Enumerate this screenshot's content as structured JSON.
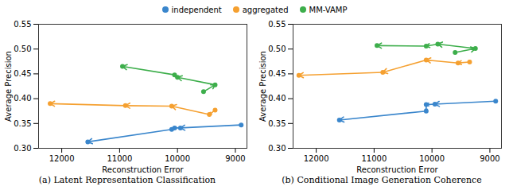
{
  "chart_data": [
    {
      "type": "line",
      "title": "(a) Latent Representation Classification",
      "x_label": "Reconstruction Error",
      "y_label": "Average Precision",
      "xlim": [
        12400,
        8800
      ],
      "ylim": [
        0.3,
        0.55
      ],
      "xticks": [
        12000,
        11000,
        10000,
        9000
      ],
      "yticks": [
        {
          "value": 0.3,
          "label": "0.30"
        },
        {
          "value": 0.35,
          "label": "0.35"
        },
        {
          "value": 0.4,
          "label": "0.40"
        },
        {
          "value": 0.45,
          "label": "0.45"
        },
        {
          "value": 0.5,
          "label": "0.50"
        },
        {
          "value": 0.55,
          "label": "0.55"
        }
      ],
      "legend": "top",
      "marker": "circle",
      "grid": false,
      "series": [
        {
          "name": "independent",
          "color": "#3a86cc",
          "x": [
            8900,
            9950,
            10050,
            10100,
            11550
          ],
          "values": [
            0.347,
            0.341,
            0.341,
            0.338,
            0.313
          ]
        },
        {
          "name": "aggregated",
          "color": "#f5a030",
          "x": [
            9350,
            9450,
            10100,
            10900,
            12200
          ],
          "values": [
            0.377,
            0.368,
            0.385,
            0.386,
            0.39
          ]
        },
        {
          "name": "MM-VAMP",
          "color": "#3dae4b",
          "x": [
            9550,
            9350,
            10000,
            10050,
            10950
          ],
          "values": [
            0.414,
            0.428,
            0.443,
            0.448,
            0.465
          ]
        }
      ]
    },
    {
      "type": "line",
      "title": "(b) Conditional Image Generation Coherence",
      "x_label": "Reconstruction Error",
      "y_label": "Average Precision",
      "xlim": [
        12400,
        8800
      ],
      "ylim": [
        0.3,
        0.55
      ],
      "xticks": [
        12000,
        11000,
        10000,
        9000
      ],
      "yticks": [
        {
          "value": 0.3,
          "label": "0.30"
        },
        {
          "value": 0.35,
          "label": "0.35"
        },
        {
          "value": 0.4,
          "label": "0.40"
        },
        {
          "value": 0.45,
          "label": "0.45"
        },
        {
          "value": 0.5,
          "label": "0.50"
        },
        {
          "value": 0.55,
          "label": "0.55"
        }
      ],
      "legend": "top",
      "marker": "circle",
      "grid": false,
      "series": [
        {
          "name": "independent",
          "color": "#3a86cc",
          "x": [
            8900,
            9950,
            10100,
            10100,
            11600
          ],
          "values": [
            0.395,
            0.389,
            0.388,
            0.375,
            0.357
          ]
        },
        {
          "name": "aggregated",
          "color": "#f5a030",
          "x": [
            9350,
            9550,
            10100,
            10850,
            12300
          ],
          "values": [
            0.474,
            0.472,
            0.478,
            0.453,
            0.447
          ]
        },
        {
          "name": "MM-VAMP",
          "color": "#3dae4b",
          "x": [
            9600,
            9250,
            9900,
            10100,
            10950
          ],
          "values": [
            0.493,
            0.501,
            0.51,
            0.506,
            0.507
          ]
        }
      ]
    }
  ]
}
